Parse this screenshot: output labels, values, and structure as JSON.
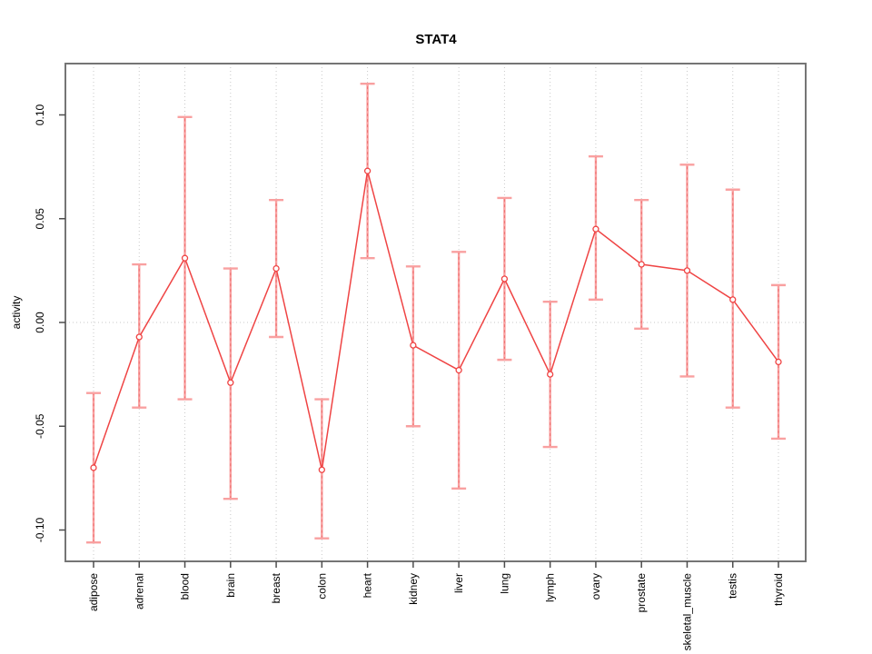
{
  "title": "STAT4",
  "chart_data": {
    "type": "line",
    "title": "STAT4",
    "xlabel": "",
    "ylabel": "activity",
    "legend": "none",
    "grid": "dotted vertical gridline at every category; dotted horizontal gridline at y=0 only",
    "categories": [
      "adipose",
      "adrenal",
      "blood",
      "brain",
      "breast",
      "colon",
      "heart",
      "kidney",
      "liver",
      "lung",
      "lymph",
      "ovary",
      "prostate",
      "skeletal_muscle",
      "testis",
      "thyroid"
    ],
    "series": [
      {
        "name": "activity",
        "marker": "open-circle",
        "values": [
          -0.07,
          -0.007,
          0.031,
          -0.029,
          0.026,
          -0.071,
          0.073,
          -0.011,
          -0.023,
          0.021,
          -0.025,
          0.045,
          0.028,
          0.025,
          0.011,
          -0.019
        ],
        "error_lower": [
          -0.106,
          -0.041,
          -0.037,
          -0.085,
          -0.007,
          -0.104,
          0.031,
          -0.05,
          -0.08,
          -0.018,
          -0.06,
          0.011,
          -0.003,
          -0.026,
          -0.041,
          -0.056
        ],
        "error_upper": [
          -0.034,
          0.028,
          0.099,
          0.026,
          0.059,
          -0.037,
          0.115,
          0.027,
          0.034,
          0.06,
          0.01,
          0.08,
          0.059,
          0.076,
          0.064,
          0.018
        ]
      }
    ],
    "yticks": [
      -0.1,
      -0.05,
      0.0,
      0.05,
      0.1
    ],
    "ytick_labels": [
      "-0.10",
      "-0.05",
      "0.00",
      "0.05",
      "0.10"
    ],
    "ylim": [
      -0.115,
      0.125
    ],
    "colors": {
      "line": "#ef4444",
      "marker": "#ef4444",
      "errorbar": "#f9a0a0",
      "errorbar_dash": "#e54848",
      "gridline": "#c9c9c9",
      "box": "#757575",
      "tick": "#4d4d4d",
      "text": "#000000",
      "background": "#ffffff"
    }
  }
}
